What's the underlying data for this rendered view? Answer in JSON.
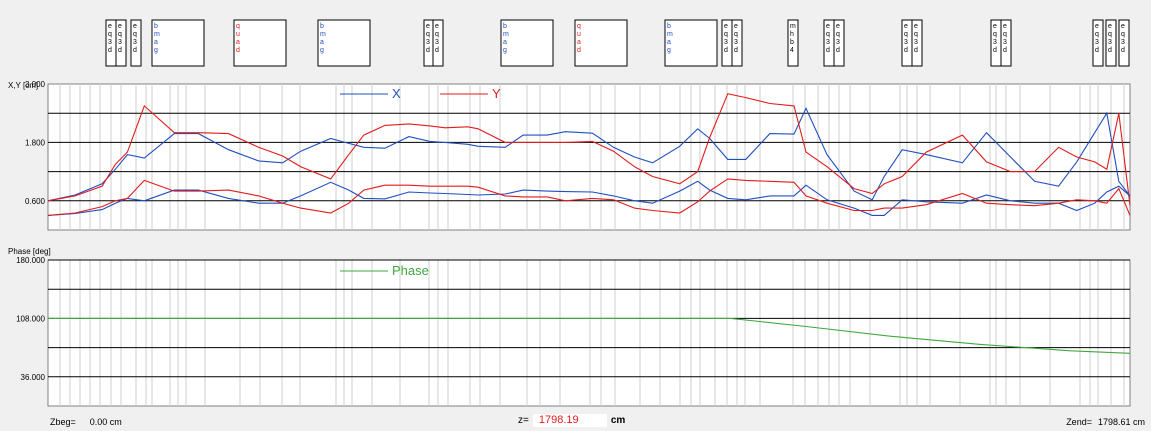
{
  "elements": [
    {
      "label": "e q 3 d",
      "color": "#000000",
      "kind": "narrow"
    },
    {
      "label": "e q 3 d",
      "color": "#000000",
      "kind": "narrow"
    },
    {
      "label": "e q 3 d",
      "color": "#000000",
      "kind": "narrow"
    },
    {
      "label": "b m a g",
      "color": "#1f4fbf",
      "kind": "wide"
    },
    {
      "label": "q u a d",
      "color": "#e21b1b",
      "kind": "wide"
    },
    {
      "label": "b m a g",
      "color": "#1f4fbf",
      "kind": "wide"
    },
    {
      "label": "e q 3 d",
      "color": "#000000",
      "kind": "narrow"
    },
    {
      "label": "e q 3 d",
      "color": "#000000",
      "kind": "narrow"
    },
    {
      "label": "b m a g",
      "color": "#1f4fbf",
      "kind": "wide"
    },
    {
      "label": "q u a d",
      "color": "#e21b1b",
      "kind": "wide"
    },
    {
      "label": "b m a g",
      "color": "#1f4fbf",
      "kind": "wide"
    },
    {
      "label": "e q 3 d",
      "color": "#000000",
      "kind": "narrow"
    },
    {
      "label": "e q 3 d",
      "color": "#000000",
      "kind": "narrow"
    },
    {
      "label": "m h b 4",
      "color": "#000000",
      "kind": "narrow"
    },
    {
      "label": "e q 3 d",
      "color": "#000000",
      "kind": "narrow"
    },
    {
      "label": "e q 3 d",
      "color": "#000000",
      "kind": "narrow"
    },
    {
      "label": "e q 3 d",
      "color": "#000000",
      "kind": "narrow"
    },
    {
      "label": "e q 3 d",
      "color": "#000000",
      "kind": "narrow"
    },
    {
      "label": "e q 3 d",
      "color": "#000000",
      "kind": "narrow"
    },
    {
      "label": "e q 3 d",
      "color": "#000000",
      "kind": "narrow"
    },
    {
      "label": "e q 3 d",
      "color": "#000000",
      "kind": "narrow"
    },
    {
      "label": "e q 3 d",
      "color": "#000000",
      "kind": "narrow"
    },
    {
      "label": "e q 3 d",
      "color": "#000000",
      "kind": "narrow"
    }
  ],
  "chart_data": [
    {
      "type": "line",
      "ylabel": "X,Y [cm]",
      "ylim": [
        0,
        3.0
      ],
      "yticks": [
        "3.000",
        "1.800",
        "0.600"
      ],
      "grid": true,
      "legend_placement": "top",
      "series": [
        {
          "name": "X",
          "color": "#1f4fbf"
        },
        {
          "name": "Y",
          "color": "#e21b1b"
        },
        {
          "color": "#1f4fbf"
        },
        {
          "color": "#e21b1b"
        }
      ],
      "zlim": [
        0,
        1798.61
      ],
      "x": [
        0,
        45,
        90,
        112,
        132,
        160,
        210,
        250,
        300,
        350,
        390,
        420,
        470,
        500,
        525,
        560,
        600,
        635,
        660,
        698,
        715,
        760,
        790,
        830,
        860,
        905,
        940,
        975,
        1005,
        1050,
        1080,
        1100,
        1130,
        1160,
        1200,
        1240,
        1260,
        1295,
        1340,
        1370,
        1390,
        1420,
        1460,
        1520,
        1560,
        1600,
        1640,
        1680,
        1710,
        1740,
        1760,
        1780,
        1798.61
      ],
      "values": [
        [
          0.6,
          0.72,
          0.95,
          1.25,
          1.55,
          1.48,
          1.98,
          1.98,
          1.65,
          1.42,
          1.38,
          1.62,
          1.88,
          1.78,
          1.7,
          1.68,
          1.92,
          1.82,
          1.8,
          1.76,
          1.72,
          1.7,
          1.95,
          1.95,
          2.02,
          1.99,
          1.7,
          1.5,
          1.38,
          1.72,
          2.08,
          1.88,
          1.45,
          1.45,
          1.98,
          1.97,
          2.5,
          1.55,
          0.8,
          0.62,
          1.1,
          1.65,
          1.55,
          1.38,
          2.0,
          1.5,
          1.0,
          0.9,
          1.4,
          2.0,
          2.4,
          1.0,
          0.7
        ],
        [
          0.6,
          0.7,
          0.9,
          1.35,
          1.6,
          2.55,
          2.0,
          2.0,
          1.98,
          1.7,
          1.52,
          1.3,
          1.05,
          1.55,
          1.95,
          2.15,
          2.18,
          2.14,
          2.1,
          2.12,
          2.08,
          1.8,
          1.8,
          1.8,
          1.8,
          1.82,
          1.62,
          1.3,
          1.1,
          0.95,
          1.2,
          1.9,
          2.8,
          2.72,
          2.6,
          2.55,
          1.6,
          1.3,
          0.85,
          0.75,
          0.95,
          1.1,
          1.6,
          1.95,
          1.4,
          1.2,
          1.2,
          1.7,
          1.5,
          1.4,
          1.25,
          2.4,
          0.5
        ],
        [
          0.3,
          0.34,
          0.42,
          0.55,
          0.65,
          0.6,
          0.82,
          0.82,
          0.65,
          0.55,
          0.55,
          0.7,
          0.98,
          0.82,
          0.65,
          0.64,
          0.78,
          0.76,
          0.75,
          0.73,
          0.72,
          0.74,
          0.82,
          0.8,
          0.79,
          0.78,
          0.7,
          0.6,
          0.55,
          0.8,
          1.0,
          0.82,
          0.65,
          0.62,
          0.7,
          0.7,
          0.92,
          0.62,
          0.45,
          0.3,
          0.3,
          0.62,
          0.58,
          0.55,
          0.72,
          0.6,
          0.55,
          0.55,
          0.4,
          0.55,
          0.78,
          0.9,
          0.7
        ],
        [
          0.3,
          0.35,
          0.48,
          0.6,
          0.65,
          1.02,
          0.8,
          0.8,
          0.82,
          0.7,
          0.55,
          0.45,
          0.35,
          0.55,
          0.82,
          0.92,
          0.92,
          0.9,
          0.9,
          0.9,
          0.88,
          0.7,
          0.68,
          0.68,
          0.6,
          0.65,
          0.62,
          0.45,
          0.4,
          0.35,
          0.58,
          0.8,
          1.05,
          1.02,
          1.0,
          0.98,
          0.7,
          0.55,
          0.4,
          0.4,
          0.45,
          0.45,
          0.52,
          0.75,
          0.55,
          0.52,
          0.5,
          0.55,
          0.62,
          0.6,
          0.55,
          0.85,
          0.3
        ]
      ]
    },
    {
      "type": "line",
      "ylabel": "Phase [deg]",
      "ylim": [
        0,
        180
      ],
      "yticks": [
        "180.000",
        "108.000",
        "36.000"
      ],
      "grid": true,
      "legend_placement": "top",
      "series": [
        {
          "name": "Phase",
          "color": "#3fa83f"
        }
      ],
      "x": [
        0,
        1135,
        1260,
        1400,
        1550,
        1700,
        1798.61
      ],
      "values": [
        [
          108,
          108,
          98,
          86,
          76,
          68,
          65
        ]
      ]
    }
  ],
  "footer": {
    "zbeg_label": "Zbeg=",
    "zbeg_value": "0.00 cm",
    "z_label": "z=",
    "z_value": "1798.19",
    "z_unit": "cm",
    "zend_label": "Zend=",
    "zend_value": "1798.61 cm"
  }
}
